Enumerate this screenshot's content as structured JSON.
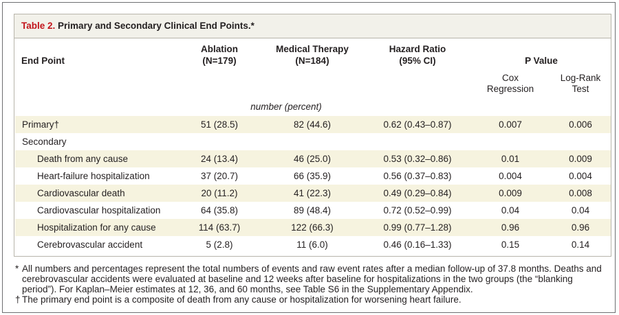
{
  "table": {
    "title_label": "Table 2.",
    "title_text": "Primary and Secondary Clinical End Points.*",
    "headers": {
      "end_point": "End Point",
      "ablation": "Ablation",
      "ablation_n": "(N=179)",
      "medical": "Medical Therapy",
      "medical_n": "(N=184)",
      "hazard": "Hazard Ratio",
      "hazard_ci": "(95% CI)",
      "p_value": "P Value",
      "cox_1": "Cox",
      "cox_2": "Regression",
      "logrank_1": "Log-Rank",
      "logrank_2": "Test"
    },
    "units": "number (percent)",
    "rows": [
      {
        "label": "Primary†",
        "ablation": "51 (28.5)",
        "medical": "82 (44.6)",
        "hr": "0.62 (0.43–0.87)",
        "cox": "0.007",
        "logrank": "0.006"
      },
      {
        "label": "Secondary",
        "ablation": "",
        "medical": "",
        "hr": "",
        "cox": "",
        "logrank": ""
      },
      {
        "label": "Death from any cause",
        "ablation": "24 (13.4)",
        "medical": "46 (25.0)",
        "hr": "0.53 (0.32–0.86)",
        "cox": "0.01",
        "logrank": "0.009"
      },
      {
        "label": "Heart-failure hospitalization",
        "ablation": "37 (20.7)",
        "medical": "66 (35.9)",
        "hr": "0.56 (0.37–0.83)",
        "cox": "0.004",
        "logrank": "0.004"
      },
      {
        "label": "Cardiovascular death",
        "ablation": "20 (11.2)",
        "medical": "41 (22.3)",
        "hr": "0.49 (0.29–0.84)",
        "cox": "0.009",
        "logrank": "0.008"
      },
      {
        "label": "Cardiovascular hospitalization",
        "ablation": "64 (35.8)",
        "medical": "89 (48.4)",
        "hr": "0.72 (0.52–0.99)",
        "cox": "0.04",
        "logrank": "0.04"
      },
      {
        "label": "Hospitalization for any cause",
        "ablation": "114 (63.7)",
        "medical": "122 (66.3)",
        "hr": "0.99 (0.77–1.28)",
        "cox": "0.96",
        "logrank": "0.96"
      },
      {
        "label": "Cerebrovascular accident",
        "ablation": "5 (2.8)",
        "medical": "11 (6.0)",
        "hr": "0.46 (0.16–1.33)",
        "cox": "0.15",
        "logrank": "0.14"
      }
    ]
  },
  "footnotes": [
    {
      "mark": "*",
      "text": "All numbers and percentages represent the total numbers of events and raw event rates after a median follow-up of 37.8 months. Deaths and cerebrovascular accidents were evaluated at baseline and 12 weeks after baseline for hospitalizations in the two groups (the “blanking period”). For Kaplan–Meier estimates at 12, 36, and 60 months, see Table S6 in the Supplementary Appendix."
    },
    {
      "mark": "†",
      "text": "The primary end point is a composite of death from any cause or hospitalization for worsening heart failure."
    }
  ],
  "colors": {
    "title_accent": "#c2141b",
    "shade": "#f6f3df",
    "titlebar_bg": "#f2f1ea"
  }
}
